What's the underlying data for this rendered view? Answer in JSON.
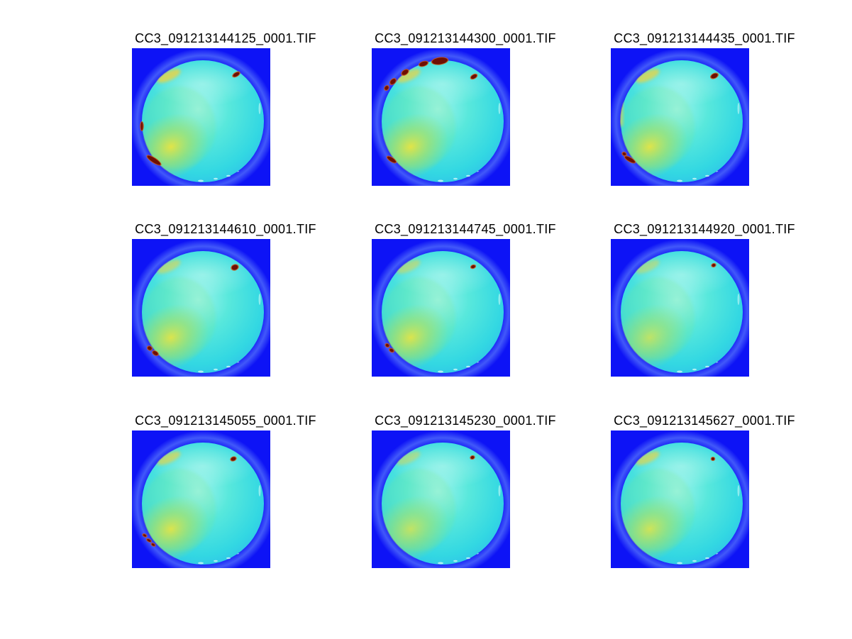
{
  "figure": {
    "kind": "matlab-image-montage",
    "background": "#ffffff",
    "colormap": "jet",
    "title_color": "#000000"
  },
  "chart_data": {
    "type": "heatmap",
    "title": "",
    "layout": "3x3 subplot montage, each subplot titled with its source filename",
    "colormap": "jet",
    "grid": [
      3,
      3
    ],
    "image_titles": [
      "CC3_091213144125_0001.TIF",
      "CC3_091213144300_0001.TIF",
      "CC3_091213144435_0001.TIF",
      "CC3_091213144610_0001.TIF",
      "CC3_091213144745_0001.TIF",
      "CC3_091213144920_0001.TIF",
      "CC3_091213145055_0001.TIF",
      "CC3_091213145230_0001.TIF",
      "CC3_091213145627_0001.TIF"
    ],
    "description": "Each subplot is a false-color (jet) fisheye all-sky image: saturated blue background, large cyan sky disc slightly paler near center, yellow-green brightening in the lower-left quadrant, sparse dark-red saturated specks near the rim, faint pale halo around the disc."
  },
  "colors": {
    "bg": "#0d13f6",
    "halo": "#8ab8ff",
    "disc_center": "#9df4ec",
    "disc_mid": "#58e8dc",
    "disc_edge": "#33d8e2",
    "disc_rim": "#2fc6e8",
    "green_tint": "#7fe87d",
    "glow_core": "#eee43c",
    "glow_mid": "#abe164",
    "arc": "#e6d44a",
    "speck_core": "#6e0f04",
    "speck_fringe": "#cf5410",
    "rim_speck": "#e4fffa"
  },
  "shared": {
    "rim_specks": [
      [
        97,
        187,
        4,
        1.5
      ],
      [
        118,
        184,
        3,
        1.2
      ],
      [
        136,
        180,
        3,
        1.2
      ],
      [
        151,
        174,
        2.5,
        1
      ]
    ],
    "right_dash": [
      180,
      85,
      1.5,
      8
    ]
  },
  "tiles": [
    {
      "title": "CC3_091213144125_0001.TIF",
      "glow": 0.92,
      "arc": 0.85,
      "specks": [
        [
          147,
          37,
          5,
          2.5,
          -30
        ],
        [
          31,
          158,
          11,
          3,
          33
        ],
        [
          14,
          110,
          1.5,
          6,
          0
        ]
      ]
    },
    {
      "title": "CC3_091213144300_0001.TIF",
      "glow": 0.92,
      "arc": 0.75,
      "specks": [
        [
          96,
          18,
          11,
          4.5,
          -8
        ],
        [
          73,
          22,
          6,
          3,
          -18
        ],
        [
          47,
          34,
          5,
          3,
          -35
        ],
        [
          30,
          47,
          4.5,
          3,
          -45
        ],
        [
          21,
          56,
          3,
          2.5,
          -52
        ],
        [
          144,
          40,
          4.5,
          2.5,
          -30
        ],
        [
          28,
          157,
          7,
          2.5,
          33
        ]
      ]
    },
    {
      "title": "CC3_091213144435_0001.TIF",
      "glow": 0.9,
      "arc": 0.8,
      "left_streak": true,
      "specks": [
        [
          146,
          39,
          5,
          3,
          -25
        ],
        [
          27,
          157,
          8,
          2.5,
          30
        ],
        [
          19,
          149,
          2.5,
          2,
          30
        ]
      ]
    },
    {
      "title": "CC3_091213144610_0001.TIF",
      "glow": 0.88,
      "arc": 0.6,
      "specks": [
        [
          145,
          40,
          4.5,
          3.5,
          -20
        ],
        [
          25,
          154,
          3,
          2.5,
          30
        ],
        [
          33,
          161,
          4,
          2.5,
          30
        ]
      ]
    },
    {
      "title": "CC3_091213144745_0001.TIF",
      "glow": 0.88,
      "arc": 0.55,
      "specks": [
        [
          143,
          39,
          3,
          2,
          -20
        ],
        [
          22,
          150,
          2.5,
          2,
          30
        ],
        [
          28,
          157,
          3,
          2,
          30
        ]
      ]
    },
    {
      "title": "CC3_091213144920_0001.TIF",
      "glow": 0.7,
      "arc": 0.5,
      "specks": [
        [
          145,
          37,
          2.5,
          2,
          -20
        ]
      ]
    },
    {
      "title": "CC3_091213145055_0001.TIF",
      "glow": 0.88,
      "arc": 0.7,
      "specks": [
        [
          143,
          40,
          3.5,
          2.5,
          -20
        ],
        [
          18,
          148,
          2.5,
          1.5,
          30
        ],
        [
          24,
          155,
          3,
          1.5,
          30
        ],
        [
          30,
          161,
          2.5,
          1.5,
          30
        ]
      ]
    },
    {
      "title": "CC3_091213145230_0001.TIF",
      "glow": 0.72,
      "arc": 0.5,
      "specks": [
        [
          142,
          38,
          2.5,
          2,
          -20
        ]
      ]
    },
    {
      "title": "CC3_091213145627_0001.TIF",
      "glow": 0.8,
      "arc": 0.7,
      "specks": [
        [
          144,
          40,
          2,
          2,
          0
        ]
      ]
    }
  ]
}
